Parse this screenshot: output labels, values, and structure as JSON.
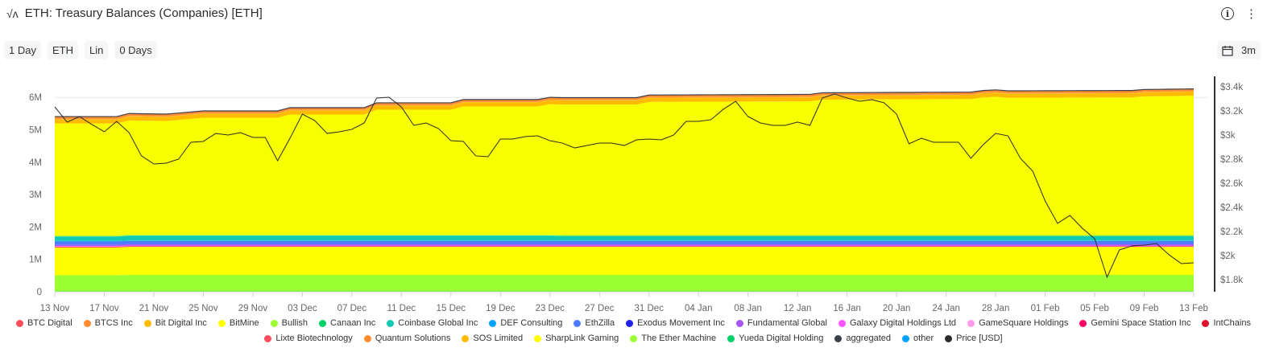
{
  "header": {
    "title": "ETH: Treasury Balances (Companies) [ETH]",
    "chart_icon": "pulse-icon",
    "info_icon": "info-icon",
    "menu_icon": "kebab-menu-icon"
  },
  "toolbar": {
    "buttons": [
      "1 Day",
      "ETH",
      "Lin",
      "0 Days"
    ],
    "range_label": "3m",
    "range_icon": "calendar-icon"
  },
  "chart_data": {
    "type": "area",
    "stacked": true,
    "title": "ETH: Treasury Balances (Companies) [ETH]",
    "x_start": "13 Nov",
    "x_step_days": 1,
    "x_range_days": [
      0,
      92
    ],
    "x_tick_labels": [
      "13 Nov",
      "17 Nov",
      "21 Nov",
      "25 Nov",
      "29 Nov",
      "03 Dec",
      "07 Dec",
      "11 Dec",
      "15 Dec",
      "19 Dec",
      "23 Dec",
      "27 Dec",
      "31 Dec",
      "04 Jan",
      "08 Jan",
      "12 Jan",
      "16 Jan",
      "20 Jan",
      "24 Jan",
      "28 Jan",
      "01 Feb",
      "05 Feb",
      "09 Feb",
      "13 Feb"
    ],
    "y_left": {
      "range": [
        0,
        6500000
      ],
      "ticks": [
        0,
        1000000,
        2000000,
        3000000,
        4000000,
        5000000,
        6000000
      ],
      "tick_labels": [
        "0",
        "1M",
        "2M",
        "3M",
        "4M",
        "5M",
        "6M"
      ]
    },
    "y_right": {
      "range": [
        1700,
        3470
      ],
      "ticks": [
        1800,
        2000,
        2200,
        2400,
        2600,
        2800,
        3000,
        3200,
        3400
      ],
      "tick_labels": [
        "$1.8k",
        "$2k",
        "$2.2k",
        "$2.4k",
        "$2.6k",
        "$2.8k",
        "$3k",
        "$3.2k",
        "$3.4k"
      ]
    },
    "grid": "y at 6M only",
    "legend_position": "bottom",
    "stack_order_bottom_up": [
      "Yueda Digital Holding",
      "The Ether Machine",
      "SharpLink Gaming",
      "IntChains",
      "Gemini Space Station Inc",
      "GameSquare Holdings",
      "Galaxy Digital Holdings Ltd",
      "Fundamental Global",
      "Exodus Movement Inc",
      "EthZilla",
      "DEF Consulting",
      "Coinbase Global Inc",
      "Canaan Inc",
      "Bullish",
      "BitMine",
      "Bit Digital Inc",
      "SOS Limited",
      "Quantum Solutions",
      "Lixte Biotechnology",
      "BTC Digital",
      "BTCS Inc"
    ],
    "series_points_unit": "millions ETH, [day, value] linear",
    "series": {
      "Yueda Digital Holding": [
        [
          0,
          0.01
        ],
        [
          92,
          0.01
        ]
      ],
      "The Ether Machine": [
        [
          0,
          0.5
        ],
        [
          5,
          0.5
        ],
        [
          6,
          0.51
        ],
        [
          92,
          0.51
        ]
      ],
      "SharpLink Gaming": [
        [
          0,
          0.86
        ],
        [
          5,
          0.86
        ],
        [
          6,
          0.865
        ],
        [
          92,
          0.865
        ]
      ],
      "IntChains": [
        [
          0,
          0.005
        ],
        [
          92,
          0.005
        ]
      ],
      "Gemini Space Station Inc": [
        [
          0,
          0.015
        ],
        [
          92,
          0.015
        ]
      ],
      "GameSquare Holdings": [
        [
          0,
          0.005
        ],
        [
          92,
          0.005
        ]
      ],
      "Galaxy Digital Holdings Ltd": [
        [
          0,
          0.015
        ],
        [
          92,
          0.015
        ]
      ],
      "Fundamental Global": [
        [
          0,
          0.04
        ],
        [
          92,
          0.04
        ]
      ],
      "Exodus Movement Inc": [
        [
          0,
          0.005
        ],
        [
          92,
          0.005
        ]
      ],
      "EthZilla": [
        [
          0,
          0.1
        ],
        [
          92,
          0.1
        ]
      ],
      "DEF Consulting": [
        [
          0,
          0.01
        ],
        [
          92,
          0.01
        ]
      ],
      "Coinbase Global Inc": [
        [
          0,
          0.14
        ],
        [
          5,
          0.14
        ],
        [
          6,
          0.15
        ],
        [
          40,
          0.15
        ],
        [
          41,
          0.14
        ],
        [
          92,
          0.14
        ]
      ],
      "Canaan Inc": [
        [
          0,
          0.005
        ],
        [
          92,
          0.005
        ]
      ],
      "Bullish": [
        [
          0,
          0.025
        ],
        [
          92,
          0.025
        ]
      ],
      "BitMine": [
        [
          0,
          3.46
        ],
        [
          5,
          3.46
        ],
        [
          6,
          3.53
        ],
        [
          9,
          3.51
        ],
        [
          12,
          3.61
        ],
        [
          18,
          3.61
        ],
        [
          19,
          3.71
        ],
        [
          25,
          3.71
        ],
        [
          26,
          3.86
        ],
        [
          32,
          3.86
        ],
        [
          33,
          3.96
        ],
        [
          39,
          3.96
        ],
        [
          40,
          4.03
        ],
        [
          47,
          4.03
        ],
        [
          48,
          4.11
        ],
        [
          61,
          4.13
        ],
        [
          62,
          4.18
        ],
        [
          74,
          4.2
        ],
        [
          75,
          4.25
        ],
        [
          76,
          4.27
        ],
        [
          77,
          4.24
        ],
        [
          87,
          4.25
        ],
        [
          88,
          4.28
        ],
        [
          92,
          4.3
        ]
      ],
      "Bit Digital Inc": [
        [
          0,
          0.13
        ],
        [
          92,
          0.13
        ]
      ],
      "SOS Limited": [
        [
          0,
          0.005
        ],
        [
          92,
          0.005
        ]
      ],
      "Quantum Solutions": [
        [
          0,
          0.005
        ],
        [
          92,
          0.005
        ]
      ],
      "Lixte Biotechnology": [
        [
          0,
          0.001
        ],
        [
          92,
          0.001
        ]
      ],
      "BTC Digital": [
        [
          0,
          0.002
        ],
        [
          92,
          0.002
        ]
      ],
      "BTCS Inc": [
        [
          0,
          0.07
        ],
        [
          92,
          0.07
        ]
      ]
    },
    "price_usd": [
      3233,
      3107,
      3153,
      3087,
      3027,
      3113,
      3020,
      2827,
      2760,
      2767,
      2800,
      2940,
      2947,
      3013,
      3000,
      3020,
      2980,
      2980,
      2787,
      2973,
      3173,
      3120,
      3013,
      3027,
      3047,
      3100,
      3307,
      3313,
      3233,
      3080,
      3100,
      3053,
      2953,
      2947,
      2827,
      2820,
      2967,
      2967,
      2987,
      2993,
      2953,
      2933,
      2893,
      2913,
      2933,
      2933,
      2913,
      2960,
      2967,
      2960,
      3000,
      3113,
      3113,
      3127,
      3213,
      3280,
      3153,
      3100,
      3080,
      3080,
      3107,
      3080,
      3307,
      3340,
      3307,
      3280,
      3293,
      3267,
      3173,
      2927,
      2973,
      2940,
      2940,
      2940,
      2807,
      2920,
      3013,
      2993,
      2807,
      2700,
      2453,
      2267,
      2333,
      2227,
      2140,
      1820,
      2047,
      2080,
      2087,
      2100,
      2007,
      1933,
      1940
    ]
  },
  "legend": {
    "row1": [
      {
        "label": "BTC Digital",
        "color": "#ff4d5e"
      },
      {
        "label": "BTCS Inc",
        "color": "#ff8c2e"
      },
      {
        "label": "Bit Digital Inc",
        "color": "#ffbb00"
      },
      {
        "label": "BitMine",
        "color": "#ffff00"
      },
      {
        "label": "Bullish",
        "color": "#9cff33"
      },
      {
        "label": "Canaan Inc",
        "color": "#00d26a"
      },
      {
        "label": "Coinbase Global Inc",
        "color": "#12c9b4"
      },
      {
        "label": "DEF Consulting",
        "color": "#00a2ff"
      },
      {
        "label": "EthZilla",
        "color": "#4d7cfe"
      },
      {
        "label": "Exodus Movement Inc",
        "color": "#2222ee"
      },
      {
        "label": "Fundamental Global",
        "color": "#a855f7"
      },
      {
        "label": "Galaxy Digital Holdings Ltd",
        "color": "#ff55ff"
      },
      {
        "label": "GameSquare Holdings",
        "color": "#ff99ee"
      },
      {
        "label": "Gemini Space Station Inc",
        "color": "#ff0066"
      },
      {
        "label": "IntChains",
        "color": "#e0102f"
      }
    ],
    "row2": [
      {
        "label": "Lixte Biotechnology",
        "color": "#ff4d5e"
      },
      {
        "label": "Quantum Solutions",
        "color": "#ff8c2e"
      },
      {
        "label": "SOS Limited",
        "color": "#ffbb00"
      },
      {
        "label": "SharpLink Gaming",
        "color": "#ffff00"
      },
      {
        "label": "The Ether Machine",
        "color": "#9cff33"
      },
      {
        "label": "Yueda Digital Holding",
        "color": "#00d26a"
      },
      {
        "label": "aggregated",
        "color": "#3a3f4b"
      },
      {
        "label": "other",
        "color": "#00a2ff"
      },
      {
        "label": "Price [USD]",
        "color": "#2b2b2b"
      }
    ]
  }
}
